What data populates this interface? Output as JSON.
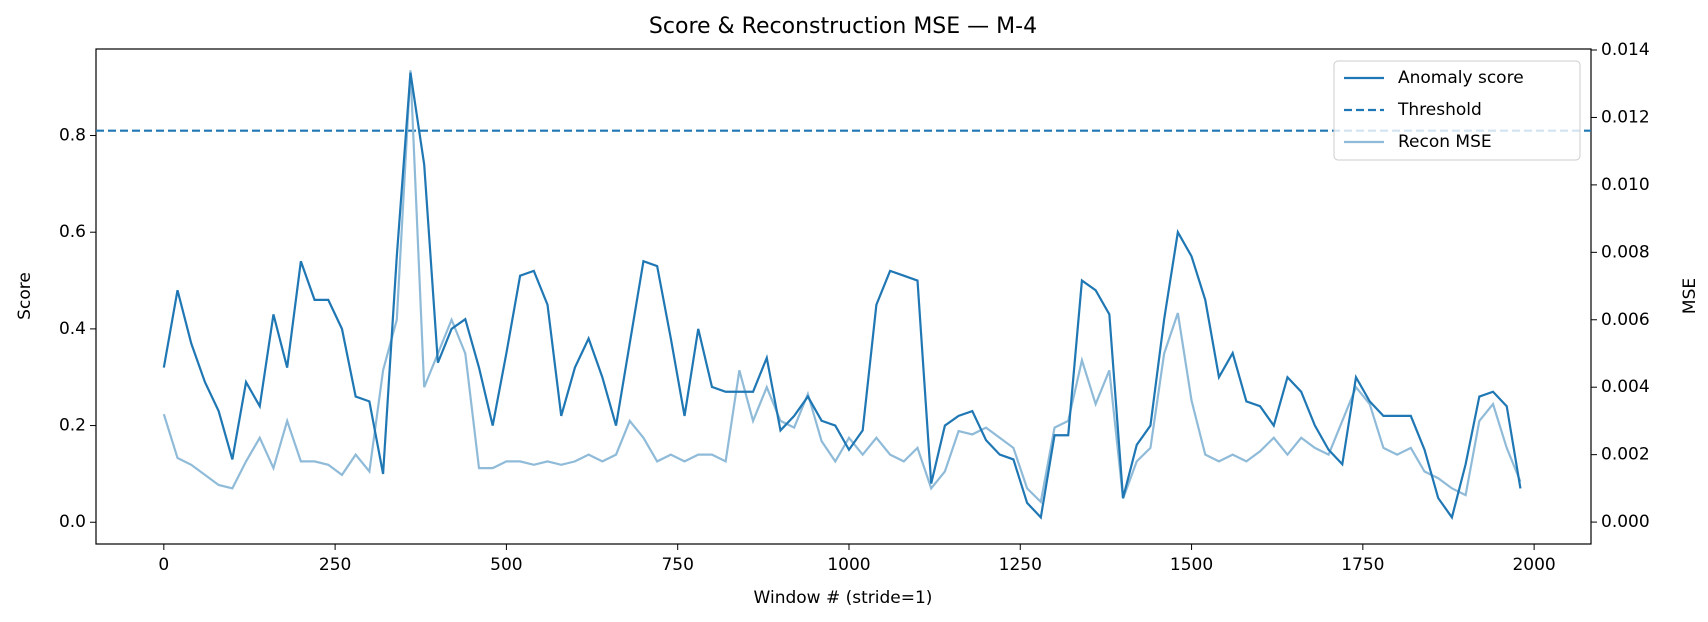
{
  "chart_data": {
    "type": "line",
    "title": "Score & Reconstruction MSE — M-4",
    "xlabel": "Window # (stride=1)",
    "ylabel": "Score",
    "y2label": "MSE",
    "x": [
      0,
      20,
      40,
      60,
      80,
      100,
      120,
      140,
      160,
      180,
      200,
      220,
      240,
      260,
      280,
      300,
      320,
      340,
      360,
      380,
      400,
      420,
      440,
      460,
      480,
      500,
      520,
      540,
      560,
      580,
      600,
      620,
      640,
      660,
      680,
      700,
      720,
      740,
      760,
      780,
      800,
      820,
      840,
      860,
      880,
      900,
      920,
      940,
      960,
      980,
      1000,
      1020,
      1040,
      1060,
      1080,
      1100,
      1120,
      1140,
      1160,
      1180,
      1200,
      1220,
      1240,
      1260,
      1280,
      1300,
      1320,
      1340,
      1360,
      1380,
      1400,
      1420,
      1440,
      1460,
      1480,
      1500,
      1520,
      1540,
      1560,
      1580,
      1600,
      1620,
      1640,
      1660,
      1680,
      1700,
      1720,
      1740,
      1760,
      1780,
      1800,
      1820,
      1840,
      1860,
      1880,
      1900,
      1920,
      1940,
      1960,
      1980
    ],
    "series": [
      {
        "name": "Anomaly score",
        "color": "#1f77b4",
        "axis": "y",
        "values": [
          0.32,
          0.48,
          0.37,
          0.29,
          0.23,
          0.13,
          0.29,
          0.24,
          0.43,
          0.32,
          0.54,
          0.46,
          0.46,
          0.4,
          0.26,
          0.25,
          0.1,
          0.55,
          0.93,
          0.74,
          0.33,
          0.4,
          0.42,
          0.32,
          0.2,
          0.35,
          0.51,
          0.52,
          0.45,
          0.22,
          0.32,
          0.38,
          0.3,
          0.2,
          0.37,
          0.54,
          0.53,
          0.38,
          0.22,
          0.4,
          0.28,
          0.27,
          0.27,
          0.27,
          0.34,
          0.19,
          0.22,
          0.26,
          0.21,
          0.2,
          0.15,
          0.19,
          0.45,
          0.52,
          0.51,
          0.5,
          0.08,
          0.2,
          0.22,
          0.23,
          0.17,
          0.14,
          0.13,
          0.04,
          0.01,
          0.18,
          0.18,
          0.5,
          0.48,
          0.43,
          0.05,
          0.16,
          0.2,
          0.42,
          0.6,
          0.55,
          0.46,
          0.3,
          0.35,
          0.25,
          0.24,
          0.2,
          0.3,
          0.27,
          0.2,
          0.15,
          0.12,
          0.3,
          0.25,
          0.22,
          0.22,
          0.22,
          0.15,
          0.05,
          0.01,
          0.12,
          0.26,
          0.27,
          0.24,
          0.07
        ]
      },
      {
        "name": "Recon MSE",
        "color": "#8fbbd9",
        "axis": "y2",
        "values": [
          0.0032,
          0.0019,
          0.0017,
          0.0014,
          0.0011,
          0.001,
          0.0018,
          0.0025,
          0.0016,
          0.003,
          0.0018,
          0.0018,
          0.0017,
          0.0014,
          0.002,
          0.0015,
          0.0045,
          0.006,
          0.0134,
          0.004,
          0.005,
          0.006,
          0.005,
          0.0016,
          0.0016,
          0.0018,
          0.0018,
          0.0017,
          0.0018,
          0.0017,
          0.0018,
          0.002,
          0.0018,
          0.002,
          0.003,
          0.0025,
          0.0018,
          0.002,
          0.0018,
          0.002,
          0.002,
          0.0018,
          0.0045,
          0.003,
          0.004,
          0.003,
          0.0028,
          0.0038,
          0.0024,
          0.0018,
          0.0025,
          0.002,
          0.0025,
          0.002,
          0.0018,
          0.0022,
          0.001,
          0.0015,
          0.0027,
          0.0026,
          0.0028,
          0.0025,
          0.0022,
          0.001,
          0.0006,
          0.0028,
          0.003,
          0.0048,
          0.0035,
          0.0045,
          0.0007,
          0.0018,
          0.0022,
          0.005,
          0.0062,
          0.0036,
          0.002,
          0.0018,
          0.002,
          0.0018,
          0.0021,
          0.0025,
          0.002,
          0.0025,
          0.0022,
          0.002,
          0.003,
          0.004,
          0.0035,
          0.0022,
          0.002,
          0.0022,
          0.0015,
          0.0013,
          0.001,
          0.0008,
          0.003,
          0.0035,
          0.0022,
          0.0012
        ]
      }
    ],
    "threshold": {
      "name": "Threshold",
      "value": 0.81,
      "color": "#1f77b4"
    },
    "xlim": [
      -99,
      2083
    ],
    "ylim": [
      -0.045,
      0.979
    ],
    "y2lim": [
      -0.00065,
      0.01403
    ],
    "xticks": [
      0,
      250,
      500,
      750,
      1000,
      1250,
      1500,
      1750,
      2000
    ],
    "yticks": [
      {
        "value": 0,
        "label": "0.0"
      },
      0.2,
      0.4,
      0.6,
      0.8
    ],
    "y2ticks": [
      {
        "value": 0,
        "label": "0.000"
      },
      0.002,
      0.004,
      0.006,
      0.008,
      {
        "value": 0.01,
        "label": "0.010"
      },
      0.012,
      0.014
    ],
    "grid": false,
    "legend": "upper right"
  }
}
